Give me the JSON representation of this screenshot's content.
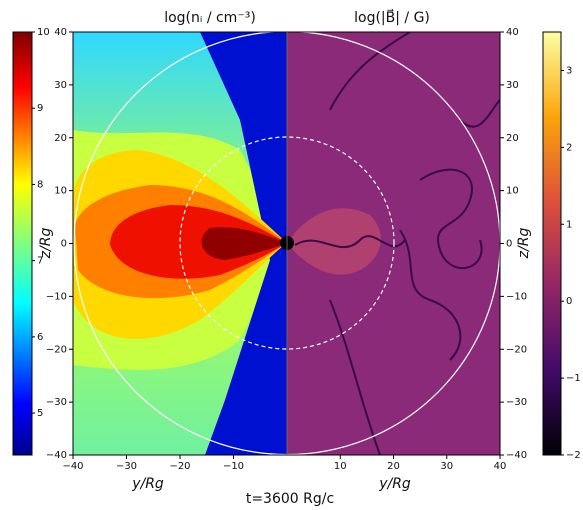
{
  "chart_data": [
    {
      "type": "heatmap",
      "title": "log(nᵢ / cm⁻³)",
      "xlabel": "y/Rg",
      "ylabel": "z/Rg",
      "xlim": [
        -40,
        0
      ],
      "ylim": [
        -40,
        40
      ],
      "xticks": [
        {
          "value": -40,
          "label": "−40"
        },
        {
          "value": -30,
          "label": "−30"
        },
        {
          "value": -20,
          "label": "−20"
        },
        {
          "value": -10,
          "label": "−10"
        }
      ],
      "yticks": [
        {
          "value": -40,
          "label": "−40"
        },
        {
          "value": -30,
          "label": "−30"
        },
        {
          "value": -20,
          "label": "−20"
        },
        {
          "value": -10,
          "label": "−10"
        },
        0,
        10,
        20,
        30,
        40
      ],
      "colorbar": {
        "lim": [
          4.45,
          10
        ],
        "ticks": [
          5,
          6,
          7,
          8,
          9,
          10
        ]
      }
    },
    {
      "type": "heatmap",
      "title": "log(|B⃗| / G)",
      "xlabel": "y/Rg",
      "ylabel": "z/Rg",
      "xlim": [
        0,
        40
      ],
      "ylim": [
        -40,
        40
      ],
      "xticks": [
        10,
        20,
        30,
        40
      ],
      "yticks": [
        {
          "value": -40,
          "label": "−40"
        },
        {
          "value": -30,
          "label": "−30"
        },
        {
          "value": -20,
          "label": "−20"
        },
        {
          "value": -10,
          "label": "−10"
        },
        0,
        10,
        20,
        30,
        40
      ],
      "colorbar": {
        "lim": [
          -2,
          3.5
        ],
        "ticks": [
          {
            "value": -2,
            "label": "−2"
          },
          {
            "value": -1,
            "label": "−1"
          },
          0,
          1,
          2,
          3
        ]
      }
    }
  ],
  "annotation": "t=3600 Rg/c"
}
